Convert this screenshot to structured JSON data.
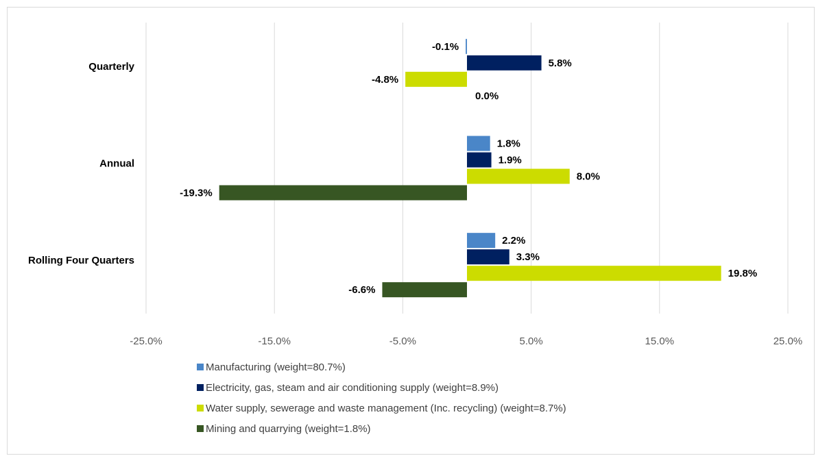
{
  "chart_data": {
    "type": "bar",
    "orientation": "horizontal",
    "categories": [
      "Quarterly",
      "Annual",
      "Rolling Four Quarters"
    ],
    "series": [
      {
        "name": "Manufacturing (weight=80.7%)",
        "color": "#4a86c8",
        "values": [
          -0.1,
          1.8,
          2.2
        ],
        "labels": [
          "-0.1%",
          "1.8%",
          "2.2%"
        ]
      },
      {
        "name": "Electricity, gas, steam and air conditioning supply (weight=8.9%)",
        "color": "#002060",
        "values": [
          5.8,
          1.9,
          3.3
        ],
        "labels": [
          "5.8%",
          "1.9%",
          "3.3%"
        ]
      },
      {
        "name": "Water supply, sewerage and waste management (Inc. recycling) (weight=8.7%)",
        "color": "#ccdc00",
        "values": [
          -4.8,
          8.0,
          19.8
        ],
        "labels": [
          "-4.8%",
          "8.0%",
          "19.8%"
        ]
      },
      {
        "name": "Mining and quarrying (weight=1.8%)",
        "color": "#375623",
        "values": [
          0.0,
          -19.3,
          -6.6
        ],
        "labels": [
          "0.0%",
          "-19.3%",
          "-6.6%"
        ]
      }
    ],
    "xlim": [
      -25,
      25
    ],
    "xticks": [
      -25,
      -15,
      -5,
      5,
      15,
      25
    ],
    "xtick_labels": [
      "-25.0%",
      "-15.0%",
      "-5.0%",
      "5.0%",
      "15.0%",
      "25.0%"
    ],
    "grid": "vertical",
    "legend_position": "bottom"
  }
}
